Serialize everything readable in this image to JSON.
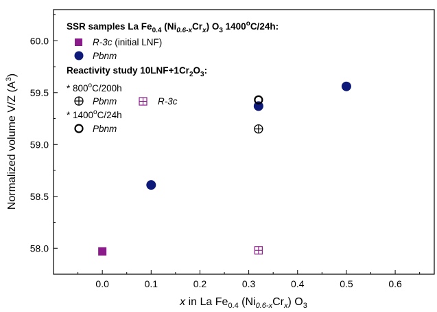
{
  "chart_data": {
    "type": "scatter",
    "xlabel": {
      "pre": "x",
      "main": " in La Fe",
      "sub1": "0.4",
      "mid": " (Ni",
      "sub2": "0.6-x",
      "mid2": "Cr",
      "sub3": "x",
      "post": ") O",
      "sub4": "3"
    },
    "ylabel": {
      "main": "Normalized volume V/Z (A",
      "sup": "3",
      "post": ")"
    },
    "xlim": [
      -0.1,
      0.68
    ],
    "ylim": [
      57.75,
      60.3
    ],
    "x_ticks": [
      0.0,
      0.1,
      0.2,
      0.3,
      0.4,
      0.5,
      0.6
    ],
    "x_tick_labels": [
      "0.0",
      "0.1",
      "0.2",
      "0.3",
      "0.4",
      "0.5",
      "0.6"
    ],
    "y_ticks": [
      58.0,
      58.5,
      59.0,
      59.5,
      60.0
    ],
    "y_tick_labels": [
      "58.0",
      "58.5",
      "59.0",
      "59.5",
      "60.0"
    ],
    "grid": false,
    "legend_position": "top-left",
    "series": [
      {
        "marker": "filled-square",
        "color": "#8b1a8b",
        "points": [
          {
            "x": 0.0,
            "y": 57.97
          }
        ]
      },
      {
        "marker": "filled-circle",
        "color": "#0e1a7a",
        "points": [
          {
            "x": 0.1,
            "y": 58.61
          },
          {
            "x": 0.32,
            "y": 59.37
          },
          {
            "x": 0.5,
            "y": 59.56
          }
        ]
      },
      {
        "marker": "circle-plus",
        "color": "#000000",
        "points": [
          {
            "x": 0.32,
            "y": 59.15
          }
        ]
      },
      {
        "marker": "square-plus",
        "color": "#8b1a8b",
        "points": [
          {
            "x": 0.32,
            "y": 57.98
          }
        ]
      },
      {
        "marker": "open-circle",
        "color": "#000000",
        "points": [
          {
            "x": 0.32,
            "y": 59.43
          }
        ]
      }
    ],
    "legend": {
      "header1": {
        "pre": "SSR samples La Fe",
        "sub1": "0.4",
        "mid": " (Ni",
        "sub2": "0.6-x",
        "mid2": "Cr",
        "sub3": "x",
        "mid3": ") O",
        "sub4": "3",
        "mid4": " 1400",
        "sup": "o",
        "post": "C/24h:"
      },
      "entry1": {
        "italic": "R-3c",
        "normal": " (initial LNF)"
      },
      "entry2": {
        "italic": "Pbnm"
      },
      "header2": {
        "pre": "Reactivity study 10LNF+1Cr",
        "sub1": "2",
        "mid": "O",
        "sub2": "3",
        "post": ":"
      },
      "cond1": {
        "pre": "* 800",
        "sup": "o",
        "post": "C/200h"
      },
      "entry3": {
        "italic": "Pbnm"
      },
      "entry4": {
        "italic": "R-3c"
      },
      "cond2": {
        "pre": "* 1400",
        "sup": "o",
        "post": "C/24h"
      },
      "entry5": {
        "italic": "Pbnm"
      }
    }
  }
}
